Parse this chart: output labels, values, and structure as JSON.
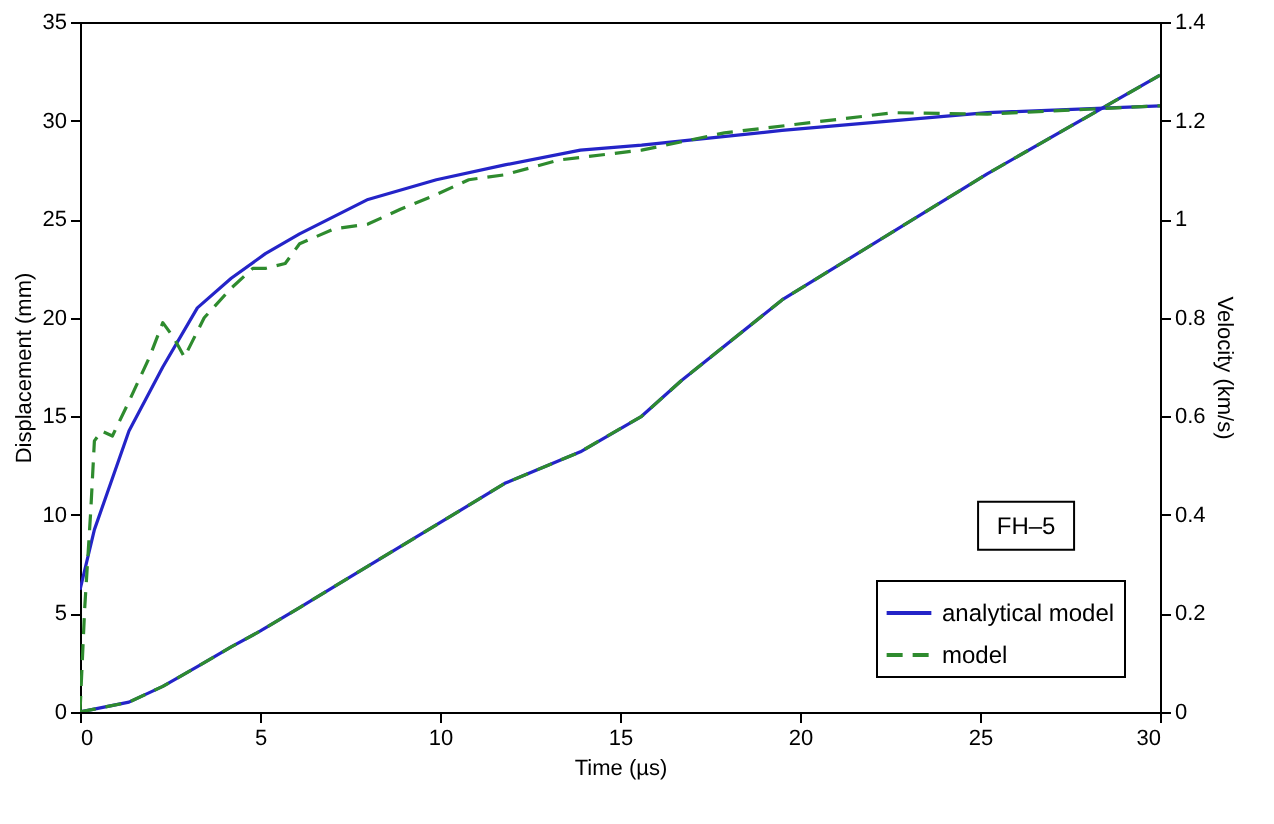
{
  "chart_data": {
    "type": "line",
    "xlabel": "Time (µs)",
    "ylabel": "Displacement (mm)",
    "y2label": "Velocity (km/s)",
    "xlim": [
      0,
      30
    ],
    "xticks": [
      0,
      5,
      10,
      15,
      20,
      25,
      30
    ],
    "ylim": [
      0,
      35
    ],
    "yticks": [
      0,
      5,
      10,
      15,
      20,
      25,
      30,
      35
    ],
    "y2lim": [
      0,
      1.4
    ],
    "y2ticks": [
      0,
      0.2,
      0.4,
      0.6,
      0.8,
      1,
      1.2,
      1.4
    ],
    "grid": false,
    "legend": "bottom right",
    "annotations": [
      "FH–5"
    ],
    "series": [
      {
        "name": "analytical model",
        "color": "#2424c8",
        "line_style": "solid",
        "x": [
          0,
          1.36,
          2.3,
          3.26,
          4.2,
          5,
          6.1,
          8,
          10,
          11.8,
          13.9,
          15.6,
          16.7,
          19.5,
          25.2,
          30
        ],
        "values": [
          0,
          0.5,
          1.3,
          2.3,
          3.3,
          4.1,
          5.3,
          7.4,
          9.6,
          11.6,
          13.2,
          15.0,
          16.8,
          20.9,
          27.3,
          32.3
        ]
      },
      {
        "name": "model",
        "color": "#2e8b2e",
        "line_style": "dashed",
        "x": [
          0,
          1.36,
          2.3,
          3.26,
          4.2,
          5,
          6.1,
          8,
          10,
          11.8,
          13.9,
          15.6,
          16.7,
          19.5,
          25.2,
          30
        ],
        "values": [
          0,
          0.5,
          1.3,
          2.3,
          3.3,
          4.1,
          5.3,
          7.4,
          9.6,
          11.6,
          13.2,
          15.0,
          16.8,
          20.9,
          27.3,
          32.3
        ]
      },
      {
        "color": "#2424c8",
        "line_style": "solid",
        "axis": "y2",
        "x": [
          0,
          0.4,
          1.36,
          2.3,
          3.26,
          4.2,
          5.15,
          6.1,
          8,
          9.9,
          11.8,
          13.9,
          15.6,
          19.5,
          25.2,
          30
        ],
        "values": [
          0.248,
          0.37,
          0.57,
          0.7,
          0.82,
          0.88,
          0.93,
          0.97,
          1.04,
          1.08,
          1.11,
          1.14,
          1.15,
          1.18,
          1.216,
          1.23
        ]
      },
      {
        "color": "#2e8b2e",
        "line_style": "dashed",
        "axis": "y2",
        "x": [
          0,
          0.13,
          0.3,
          0.4,
          0.6,
          0.9,
          1.36,
          1.93,
          2.3,
          2.6,
          2.9,
          3.45,
          4.2,
          4.8,
          5.15,
          5.7,
          6.1,
          7.05,
          8,
          8.9,
          9.9,
          10.8,
          11.8,
          13.3,
          15.6,
          17.9,
          22.6,
          25.2,
          28,
          30
        ],
        "values": [
          0,
          0.21,
          0.41,
          0.55,
          0.57,
          0.56,
          0.63,
          0.72,
          0.79,
          0.76,
          0.72,
          0.8,
          0.86,
          0.9,
          0.9,
          0.91,
          0.95,
          0.98,
          0.99,
          1.02,
          1.05,
          1.08,
          1.09,
          1.12,
          1.14,
          1.175,
          1.216,
          1.213,
          1.223,
          1.23
        ]
      }
    ]
  }
}
